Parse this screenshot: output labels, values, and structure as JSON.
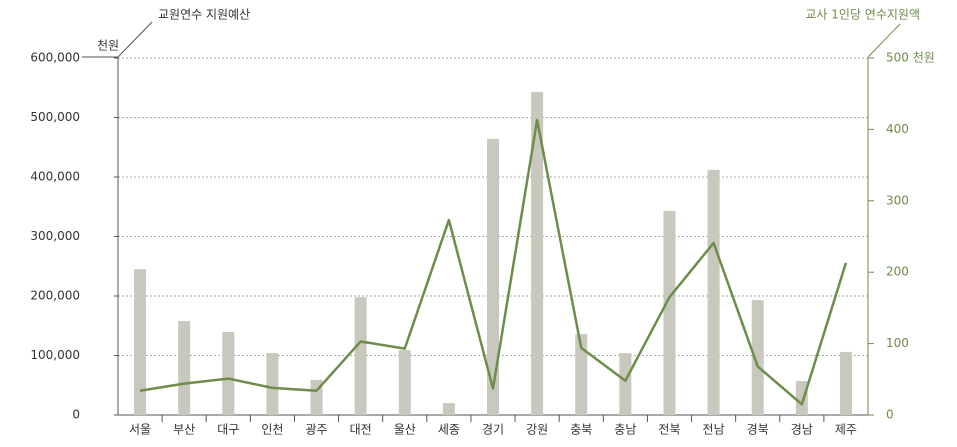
{
  "chart_data": {
    "type": "bar_line",
    "categories": [
      "서울",
      "부산",
      "대구",
      "인천",
      "광주",
      "대전",
      "울산",
      "세종",
      "경기",
      "강원",
      "충북",
      "충남",
      "전북",
      "전남",
      "경북",
      "경남",
      "제주"
    ],
    "y_unit": "천원",
    "series": [
      {
        "name": "교원연수 지원예산",
        "type": "bar",
        "color": "#c8c8be",
        "values": [
          245000,
          158000,
          139500,
          104000,
          59000,
          198000,
          109000,
          20000,
          464000,
          543000,
          136000,
          104000,
          343000,
          412000,
          193000,
          57000,
          106000
        ]
      },
      {
        "name": "교사 1인당 연수지원액",
        "type": "line",
        "color": "#6e8c4a",
        "axis": "y2",
        "values": [
          34,
          44,
          51,
          38,
          34,
          103,
          93,
          273,
          37,
          413,
          94,
          48,
          165,
          241,
          68,
          15,
          213
        ]
      }
    ],
    "ylim": [
      0,
      600000
    ],
    "yticks": [
      0,
      {
        "value": 100000,
        "label": "100,000"
      },
      {
        "value": 200000,
        "label": "200,000"
      },
      {
        "value": 300000,
        "label": "300,000"
      },
      {
        "value": 400000,
        "label": "400,000"
      },
      {
        "value": 500000,
        "label": "500,000"
      },
      {
        "value": 600000,
        "label": "600,000"
      }
    ],
    "y2lim": [
      0,
      500
    ],
    "y2ticks": [
      0,
      100,
      200,
      300,
      400,
      {
        "value": 500,
        "label": "500 천원"
      }
    ],
    "grid": true
  }
}
